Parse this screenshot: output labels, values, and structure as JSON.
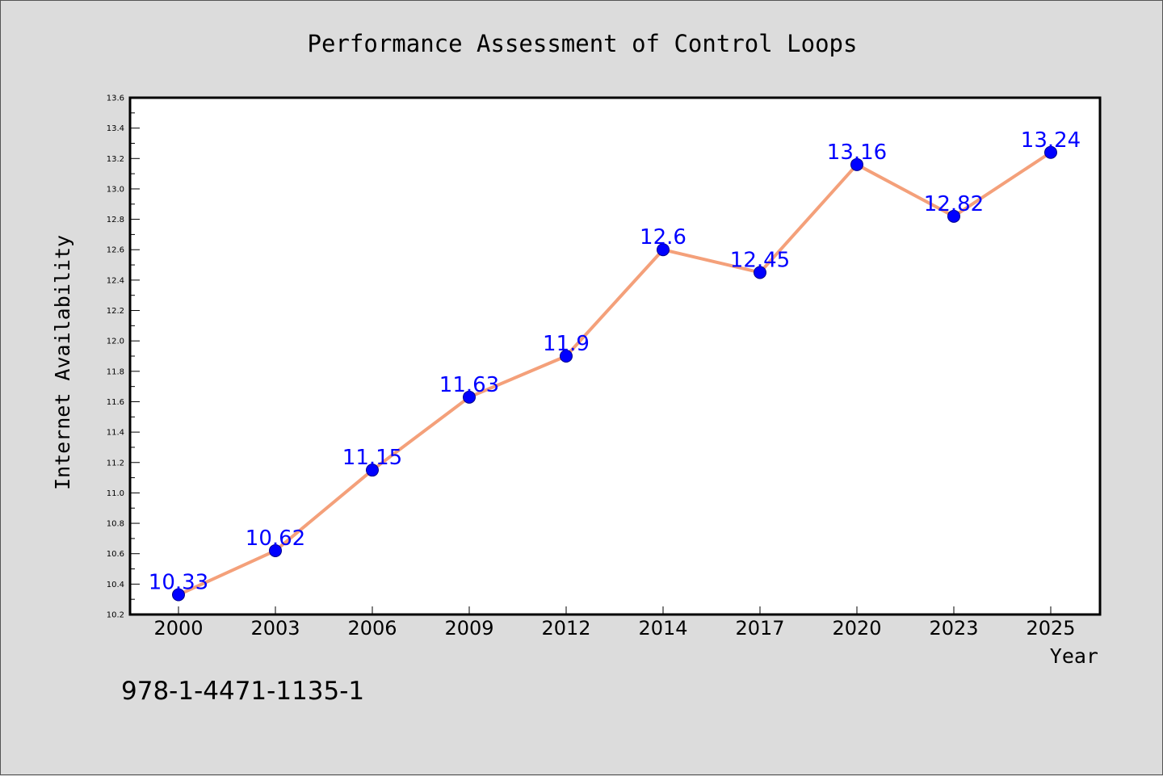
{
  "chart_data": {
    "type": "line",
    "title": "Performance Assessment of Control Loops",
    "xlabel": "Year",
    "ylabel": "Internet Availability",
    "categories": [
      "2000",
      "2003",
      "2006",
      "2009",
      "2012",
      "2014",
      "2017",
      "2020",
      "2023",
      "2025"
    ],
    "series": [
      {
        "values": [
          10.33,
          10.62,
          11.15,
          11.63,
          11.9,
          12.6,
          12.45,
          13.16,
          12.82,
          13.24
        ],
        "data_labels": [
          "10.33",
          "10.62",
          "11.15",
          "11.63",
          "11.9",
          "12.6",
          "12.45",
          "13.16",
          "12.82",
          "13.24"
        ],
        "line_color": "#f4a07a",
        "marker_color": "#0000ff"
      }
    ],
    "ylim": [
      10.2,
      13.6
    ],
    "yticks": [
      "10.2",
      "10.4",
      "10.6",
      "10.8",
      "11.0",
      "11.2",
      "11.4",
      "11.6",
      "11.8",
      "12.0",
      "12.2",
      "12.4",
      "12.6",
      "12.8",
      "13.0",
      "13.2",
      "13.4",
      "13.6"
    ],
    "grid": false,
    "legend": "none",
    "background_color": "#dcdcdc",
    "plot_background_color": "#ffffff",
    "data_label_color": "#0000ff"
  },
  "footer": {
    "isbn": "978-1-4471-1135-1"
  }
}
